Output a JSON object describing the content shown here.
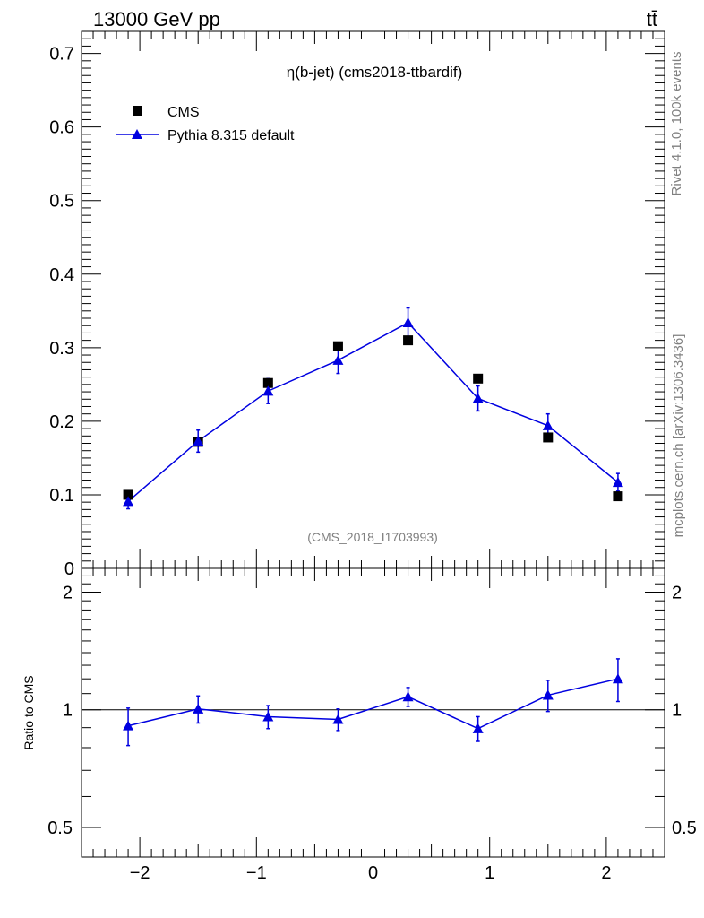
{
  "header": {
    "left_label": "13000 GeV pp",
    "right_label": "tt̄"
  },
  "side_labels": {
    "rivet": "Rivet 4.1.0,  100k events",
    "mcplots": "mcplots.cern.ch [arXiv:1306.3436]"
  },
  "colors": {
    "mc": "#0000e0",
    "data": "#000000",
    "watermark": "#808080"
  },
  "chart_data": [
    {
      "type": "scatter",
      "panel": "main",
      "title": "η(b-jet) (cms2018-ttbardif)",
      "watermark": "(CMS_2018_I1703993)",
      "xlabel": "",
      "ylabel": "",
      "xlim": [
        -2.5,
        2.5
      ],
      "ylim": [
        0,
        0.73
      ],
      "yticks": [
        0,
        0.1,
        0.2,
        0.3,
        0.4,
        0.5,
        0.6,
        0.7
      ],
      "ytick_labels": [
        "0",
        "0.1",
        "0.2",
        "0.3",
        "0.4",
        "0.5",
        "0.6",
        "0.7"
      ],
      "legend": "top-left",
      "series": [
        {
          "name": "CMS",
          "marker": "square",
          "x": [
            -2.1,
            -1.5,
            -0.9,
            -0.3,
            0.3,
            0.9,
            1.5,
            2.1
          ],
          "y": [
            0.1,
            0.172,
            0.252,
            0.302,
            0.31,
            0.258,
            0.178,
            0.098
          ]
        },
        {
          "name": "Pythia 8.315 default",
          "marker": "triangle",
          "line": true,
          "x": [
            -2.1,
            -1.5,
            -0.9,
            -0.3,
            0.3,
            0.9,
            1.5,
            2.1
          ],
          "y": [
            0.091,
            0.173,
            0.241,
            0.283,
            0.334,
            0.231,
            0.194,
            0.117
          ],
          "err": [
            0.01,
            0.015,
            0.017,
            0.018,
            0.02,
            0.017,
            0.016,
            0.012
          ]
        }
      ]
    },
    {
      "type": "scatter",
      "panel": "ratio",
      "ylabel": "Ratio to CMS",
      "xlim": [
        -2.5,
        2.5
      ],
      "ylim": [
        0.42,
        2.3
      ],
      "yscale": "log",
      "yticks": [
        0.5,
        1,
        2
      ],
      "ytick_labels": [
        "0.5",
        "1",
        "2"
      ],
      "xticks": [
        -2,
        -1,
        0,
        1,
        2
      ],
      "xtick_labels": [
        "−2",
        "−1",
        "0",
        "1",
        "2"
      ],
      "reference_line": 1,
      "series": [
        {
          "name": "Pythia 8.315 default",
          "marker": "triangle",
          "line": true,
          "x": [
            -2.1,
            -1.5,
            -0.9,
            -0.3,
            0.3,
            0.9,
            1.5,
            2.1
          ],
          "y": [
            0.91,
            1.005,
            0.96,
            0.945,
            1.08,
            0.895,
            1.09,
            1.2
          ],
          "err_up": [
            0.1,
            0.08,
            0.065,
            0.06,
            0.06,
            0.065,
            0.1,
            0.15
          ],
          "err_down": [
            0.1,
            0.08,
            0.065,
            0.06,
            0.06,
            0.065,
            0.1,
            0.15
          ]
        }
      ]
    }
  ]
}
